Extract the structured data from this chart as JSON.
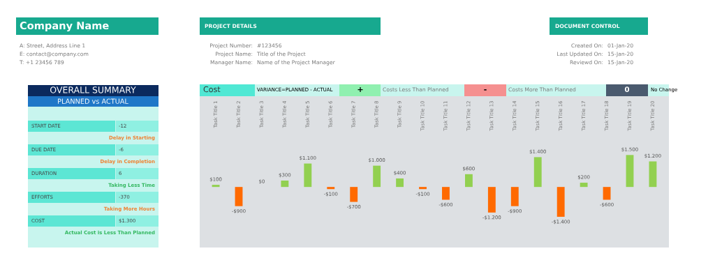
{
  "chart_data": {
    "type": "bar",
    "title": "Cost",
    "categories": [
      "Task Title 1",
      "Task Title 2",
      "Task Title 3",
      "Task Title 4",
      "Task Title 5",
      "Task Title 6",
      "Task Title 7",
      "Task Title 8",
      "Task Title 9",
      "Task Title 10",
      "Task Title 11",
      "Task Title 12",
      "Task Title 13",
      "Task Title 14",
      "Task Title 15",
      "Task Title 16",
      "Task Title 17",
      "Task Title 18",
      "Task Title 19",
      "Task Title 20"
    ],
    "values": [
      100,
      -900,
      0,
      300,
      1100,
      -100,
      -700,
      1000,
      400,
      -100,
      -600,
      600,
      -1200,
      -900,
      1400,
      -1400,
      200,
      -600,
      1500,
      1200
    ],
    "colors": [
      "#92d050",
      "#ff6a00",
      "#92d050",
      "#92d050",
      "#92d050",
      "#ff6a00",
      "#ff6a00",
      "#92d050",
      "#92d050",
      "#ff6a00",
      "#ff6a00",
      "#92d050",
      "#ff6a00",
      "#ff6a00",
      "#92d050",
      "#ff6a00",
      "#92d050",
      "#ff6a00",
      "#92d050",
      "#92d050"
    ],
    "value_labels": [
      "$100",
      "-$900",
      "$0",
      "$300",
      "$1.100",
      "-$100",
      "-$700",
      "$1.000",
      "$400",
      "-$100",
      "-$600",
      "$600",
      "-$1.200",
      "-$900",
      "$1.400",
      "-$1.400",
      "$200",
      "-$600",
      "$1.500",
      "$1.200"
    ],
    "legend": false,
    "annotations": [
      "Company Name",
      "A: Street, Address Line 1",
      "E: contact@company.com",
      "T: +1 23456 789",
      "PROJECT DETAILS",
      "Project Number:",
      "#123456",
      "Project Name:",
      "Title of the Project",
      "Manager Name:",
      "Name of the Project Manager",
      "DOCUMENT CONTROL",
      "Created On:",
      "01-Jan-20",
      "Last Updated On:",
      "15-Jan-20",
      "Reviewd On:",
      "15-Jan-20",
      "OVERALL SUMMARY",
      "PLANNED vs ACTUAL",
      "START DATE",
      "-12",
      "Delay in Starting",
      "DUE DATE",
      "-6",
      "Delay in Completion",
      "DURATION",
      "6",
      "Taking Less Time",
      "EFFORTS",
      "-370",
      "Taking More Hours",
      "COST",
      "$1.300",
      "Actual Cost is Less Than Planned",
      "VARIANCE=PLANNED - ACTUAL",
      "+",
      "Costs Less Than Planned",
      "-",
      "Costs More Than Planned",
      "0",
      "No Change"
    ]
  }
}
